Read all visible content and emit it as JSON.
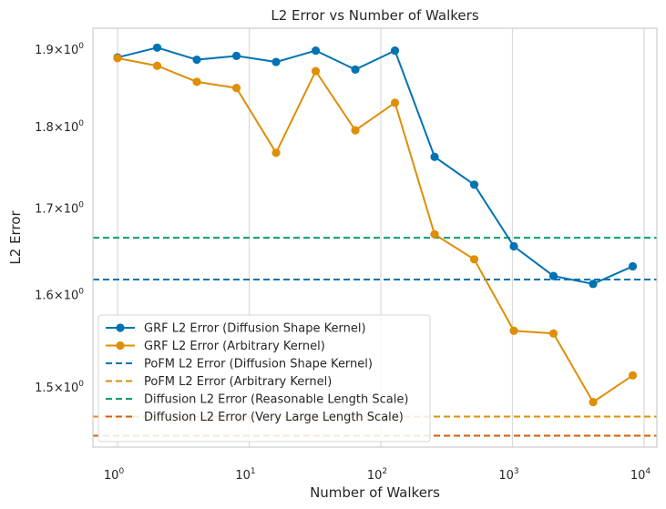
{
  "chart_data": {
    "type": "line",
    "title": "L2 Error vs Number of Walkers",
    "xlabel": "Number of Walkers",
    "ylabel": "L2 Error",
    "xscale": "log",
    "yscale": "log",
    "xlim": [
      0.65,
      12500
    ],
    "ylim": [
      1.438,
      1.928
    ],
    "x_ticks": [
      {
        "value": 1,
        "base": "10",
        "exp": "0"
      },
      {
        "value": 10,
        "base": "10",
        "exp": "1"
      },
      {
        "value": 100,
        "base": "10",
        "exp": "2"
      },
      {
        "value": 1000,
        "base": "10",
        "exp": "3"
      },
      {
        "value": 10000,
        "base": "10",
        "exp": "4"
      }
    ],
    "y_ticks": [
      {
        "value": 1.5,
        "mant": "1.5",
        "base": "10",
        "exp": "0"
      },
      {
        "value": 1.6,
        "mant": "1.6",
        "base": "10",
        "exp": "0"
      },
      {
        "value": 1.7,
        "mant": "1.7",
        "base": "10",
        "exp": "0"
      },
      {
        "value": 1.8,
        "mant": "1.8",
        "base": "10",
        "exp": "0"
      },
      {
        "value": 1.9,
        "mant": "1.9",
        "base": "10",
        "exp": "0"
      }
    ],
    "grid": true,
    "legend_position": "lower-left",
    "x": [
      1,
      2,
      4,
      8,
      16,
      32,
      64,
      128,
      256,
      512,
      1024,
      2048,
      4096,
      8192
    ],
    "series": [
      {
        "name": "GRF L2 Error (Diffusion Shape Kernel)",
        "kind": "line-marker",
        "color": "#0173b2",
        "values": [
          1.889,
          1.902,
          1.886,
          1.891,
          1.883,
          1.898,
          1.873,
          1.898,
          1.762,
          1.728,
          1.655,
          1.621,
          1.612,
          1.632
        ]
      },
      {
        "name": "GRF L2 Error (Arbitrary Kernel)",
        "kind": "line-marker",
        "color": "#de8f05",
        "values": [
          1.888,
          1.878,
          1.857,
          1.849,
          1.767,
          1.871,
          1.795,
          1.83,
          1.669,
          1.64,
          1.56,
          1.557,
          1.484,
          1.512
        ]
      },
      {
        "name": "PoFM L2 Error (Diffusion Shape Kernel)",
        "kind": "hline",
        "color": "#0173b2",
        "value": 1.617
      },
      {
        "name": "PoFM L2 Error (Arbitrary Kernel)",
        "kind": "hline",
        "color": "#de8f05",
        "value": 1.469
      },
      {
        "name": "Diffusion L2 Error (Reasonable Length Scale)",
        "kind": "hline",
        "color": "#029e73",
        "value": 1.665
      },
      {
        "name": "Diffusion L2 Error (Very Large Length Scale)",
        "kind": "hline",
        "color": "#d55e00",
        "value": 1.4495
      }
    ]
  }
}
